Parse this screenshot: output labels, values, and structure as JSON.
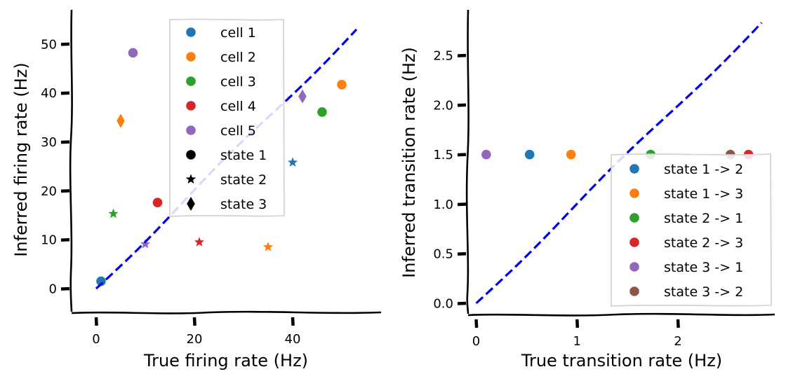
{
  "chart_data": [
    {
      "type": "scatter",
      "xlabel": "True firing rate (Hz)",
      "ylabel": "Inferred firing rate (Hz)",
      "xlim": [
        -5,
        58
      ],
      "ylim": [
        -5,
        57
      ],
      "xticks": [
        0,
        20,
        40
      ],
      "yticks": [
        0,
        10,
        20,
        30,
        40,
        50
      ],
      "identity_line": {
        "color": "#0000ee",
        "style": "dashed",
        "from": [
          0,
          0
        ],
        "to": [
          53,
          53
        ]
      },
      "legend": {
        "placement": "top-center",
        "entries": [
          {
            "label": "cell 1",
            "marker": "circle",
            "color": "#1f77b4"
          },
          {
            "label": "cell 2",
            "marker": "circle",
            "color": "#ff7f0e"
          },
          {
            "label": "cell 3",
            "marker": "circle",
            "color": "#2ca02c"
          },
          {
            "label": "cell 4",
            "marker": "circle",
            "color": "#d62728"
          },
          {
            "label": "cell 5",
            "marker": "circle",
            "color": "#9467bd"
          },
          {
            "label": "state 1",
            "marker": "circle",
            "color": "#000000"
          },
          {
            "label": "state 2",
            "marker": "star",
            "color": "#000000"
          },
          {
            "label": "state 3",
            "marker": "diamond",
            "color": "#000000"
          }
        ]
      },
      "points": [
        {
          "cell": "cell 1",
          "state": "state 1",
          "x": 1,
          "y": 1.5
        },
        {
          "cell": "cell 2",
          "state": "state 1",
          "x": 50,
          "y": 41.7
        },
        {
          "cell": "cell 3",
          "state": "state 1",
          "x": 46,
          "y": 36.1
        },
        {
          "cell": "cell 4",
          "state": "state 1",
          "x": 12.5,
          "y": 17.6
        },
        {
          "cell": "cell 5",
          "state": "state 1",
          "x": 7.5,
          "y": 48.2
        },
        {
          "cell": "cell 1",
          "state": "state 2",
          "x": 40,
          "y": 25.8
        },
        {
          "cell": "cell 2",
          "state": "state 2",
          "x": 35,
          "y": 8.5
        },
        {
          "cell": "cell 3",
          "state": "state 2",
          "x": 3.5,
          "y": 15.3
        },
        {
          "cell": "cell 4",
          "state": "state 2",
          "x": 21,
          "y": 9.5
        },
        {
          "cell": "cell 5",
          "state": "state 2",
          "x": 10,
          "y": 9.1
        },
        {
          "cell": "cell 2",
          "state": "state 3",
          "x": 5,
          "y": 34.3
        },
        {
          "cell": "cell 5",
          "state": "state 3",
          "x": 42,
          "y": 39.3
        }
      ]
    },
    {
      "type": "scatter",
      "xlabel": "True transition rate (Hz)",
      "ylabel": "Inferred transition rate (Hz)",
      "xlim": [
        -0.08,
        2.96
      ],
      "ylim": [
        -0.12,
        2.96
      ],
      "xticks": [
        0,
        1,
        2
      ],
      "yticks": [
        0.0,
        0.5,
        1.0,
        1.5,
        2.0,
        2.5
      ],
      "identity_line": {
        "color": "#0000ee",
        "style": "dashed",
        "from": [
          0,
          0
        ],
        "to": [
          2.83,
          2.83
        ]
      },
      "legend": {
        "placement": "lower-right",
        "entries": [
          {
            "label": "state 1 -> 2",
            "color": "#1f77b4"
          },
          {
            "label": "state 1 -> 3",
            "color": "#ff7f0e"
          },
          {
            "label": "state 2 -> 1",
            "color": "#2ca02c"
          },
          {
            "label": "state 2 -> 3",
            "color": "#d62728"
          },
          {
            "label": "state 3 -> 1",
            "color": "#9467bd"
          },
          {
            "label": "state 3 -> 2",
            "color": "#8c564b"
          }
        ]
      },
      "points": [
        {
          "label": "state 3 -> 1",
          "x": 0.1,
          "y": 1.5
        },
        {
          "label": "state 1 -> 2",
          "x": 0.53,
          "y": 1.5
        },
        {
          "label": "state 1 -> 3",
          "x": 0.94,
          "y": 1.5
        },
        {
          "label": "state 2 -> 1",
          "x": 1.73,
          "y": 1.5
        },
        {
          "label": "state 3 -> 2",
          "x": 2.52,
          "y": 1.5
        },
        {
          "label": "state 2 -> 3",
          "x": 2.7,
          "y": 1.5
        }
      ]
    }
  ]
}
